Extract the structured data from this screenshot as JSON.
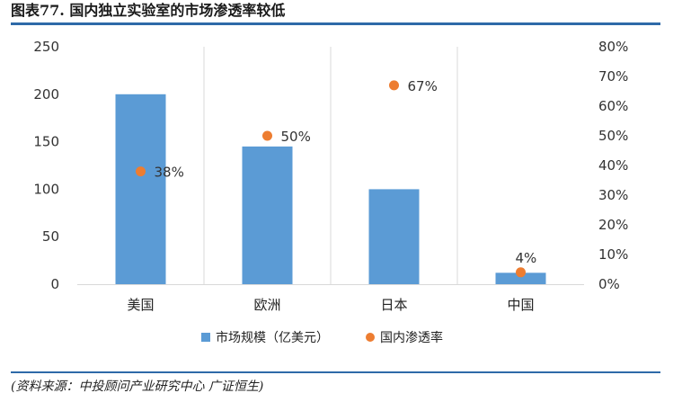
{
  "header": {
    "title": "图表77.  国内独立实验室的市场渗透率较低"
  },
  "source": {
    "text": "(资料来源：中投顾问产业研究中心 广证恒生)"
  },
  "colors": {
    "bar": "#5b9bd5",
    "point": "#ed7d31",
    "rule": "#2e6aa8",
    "grid": "#d9d9d9"
  },
  "chart_data": {
    "type": "bar",
    "categories": [
      "美国",
      "欧洲",
      "日本",
      "中国"
    ],
    "series": [
      {
        "name": "市场规模（亿美元）",
        "type": "bar",
        "axis": "left",
        "values": [
          200,
          145,
          100,
          12
        ]
      },
      {
        "name": "国内渗透率",
        "type": "scatter",
        "axis": "right",
        "values": [
          38,
          50,
          67,
          4
        ],
        "labels": [
          "38%",
          "50%",
          "67%",
          "4%"
        ]
      }
    ],
    "y_left": {
      "ticks": [
        "0",
        "50",
        "100",
        "150",
        "200",
        "250"
      ],
      "range": [
        0,
        250
      ]
    },
    "y_right": {
      "ticks": [
        "0%",
        "10%",
        "20%",
        "30%",
        "40%",
        "50%",
        "60%",
        "70%",
        "80%"
      ],
      "range": [
        0,
        80
      ]
    },
    "legend": {
      "position": "bottom"
    },
    "grid": "vertical category separators"
  }
}
